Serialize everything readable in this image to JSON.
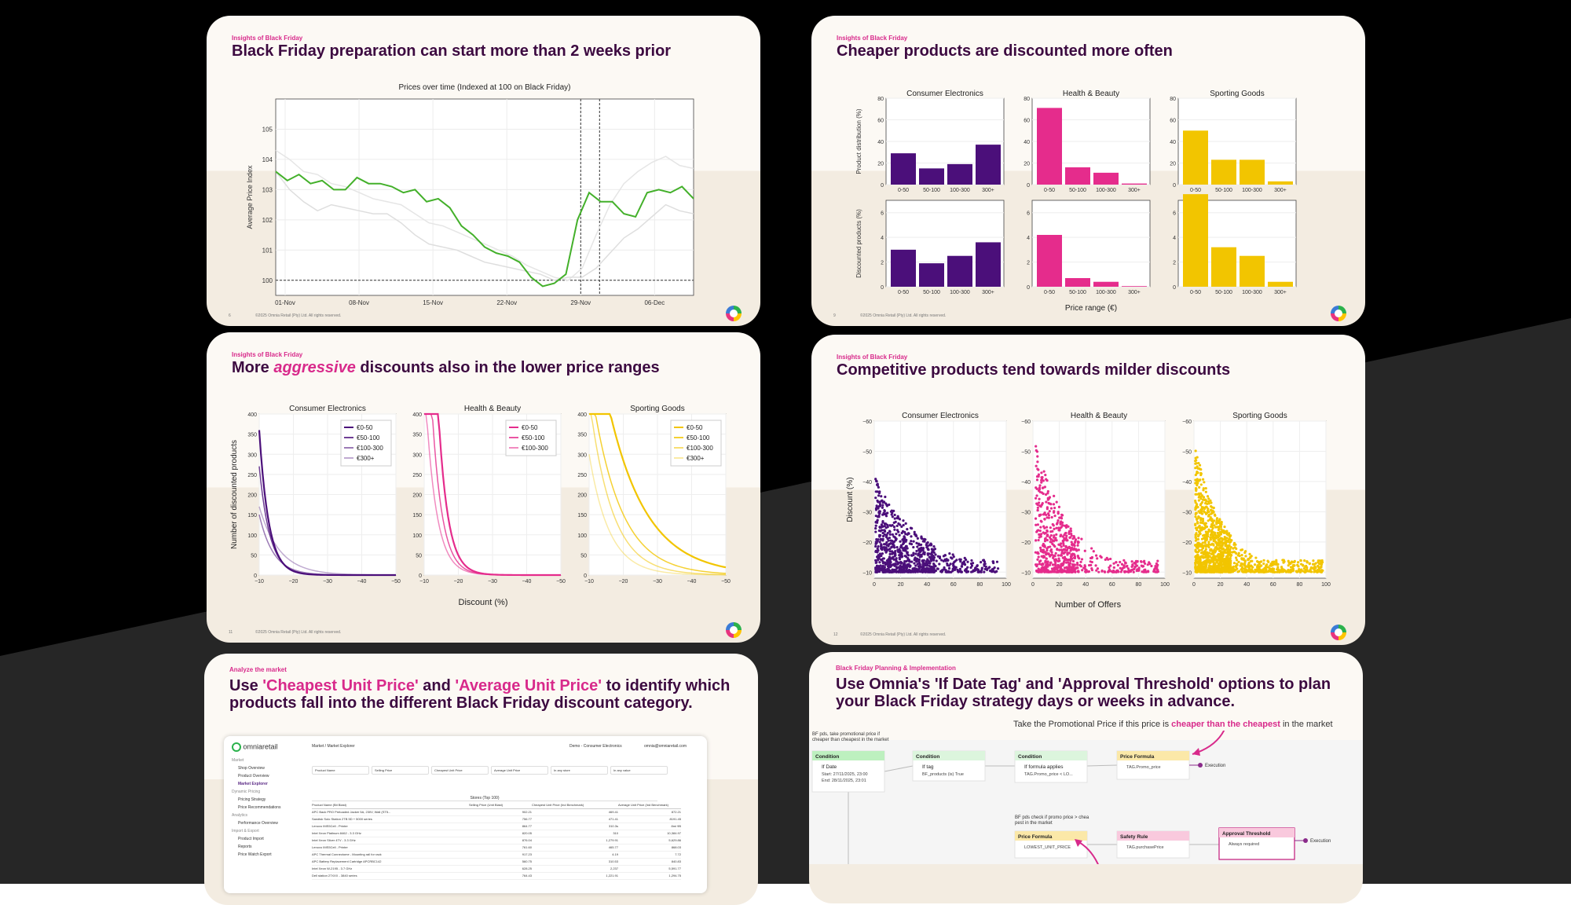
{
  "slides": {
    "s1": {
      "kicker": "Insights of Black Friday",
      "title": "Black Friday preparation can start more than 2 weeks prior",
      "page": "6",
      "copyright": "©2025 Omnia Retail (Pty) Ltd. All rights reserved."
    },
    "s2": {
      "kicker": "Insights of Black Friday",
      "title": "Cheaper products are discounted more often",
      "page": "9",
      "copyright": "©2025 Omnia Retail (Pty) Ltd. All rights reserved."
    },
    "s3": {
      "kicker": "Insights of Black Friday",
      "title_pre": "More ",
      "title_em": "aggressive",
      "title_post": " discounts also in the lower price ranges",
      "page": "11",
      "copyright": "©2025 Omnia Retail (Pty) Ltd. All rights reserved."
    },
    "s4": {
      "kicker": "Insights of Black Friday",
      "title": "Competitive products tend towards milder discounts",
      "page": "12",
      "copyright": "©2025 Omnia Retail (Pty) Ltd. All rights reserved."
    },
    "s5": {
      "kicker": "Analyze the market",
      "title_a": "Use ",
      "title_b": "'Cheapest Unit Price'",
      "title_c": " and ",
      "title_d": "'Average Unit Price'",
      "title_e": " to identify which products fall into the different Black Friday discount category.",
      "app": {
        "logo": "omniaretail",
        "breadcrumb": "Market / Market Explorer",
        "env": "Demo - Consumer Electronics",
        "user": "omnia@omniaretail.com",
        "nav": [
          "Market",
          "Shop Overview",
          "Product Overview",
          "Market Explorer",
          "Dynamic Pricing",
          "Pricing Strategy",
          "Price Recommendations",
          "Analytics",
          "Performance Overview",
          "Import & Export",
          "Product Import",
          "Reports",
          "Price Watch Export"
        ],
        "filters": [
          "Product Name",
          "Selling Price",
          "Cheapest Unit Price",
          "Average Unit Price",
          "In any store",
          "In any value"
        ],
        "table_header": "Stores (Top 100)",
        "columns": [
          "Product Name (Bit Blast)",
          "Selling Price (Unit Blast)",
          "Cheapest Unit Price (Ind Benchmark)",
          "Average Unit Price (Ind Benchmark)"
        ],
        "rows": [
          [
            "APC Back PRO Preloaded Jacker 5A, 230V, Wall (ST5...",
            "902.21",
            "469.41",
            "872.21"
          ],
          [
            "Sandisk Solo Station 2TB 5D + 5000 series",
            "756.77",
            "471.41",
            "8191.45"
          ],
          [
            "Lenovo IMS5Cell - Printer",
            "864.77",
            "310.3s",
            "8mi 9B"
          ],
          [
            "Intel Xeon Platinum 8462 - 3.3 GHz",
            "820.05",
            "310",
            "10,384.97"
          ],
          [
            "Intel Xeon Silver 4TV - 3.3 GHz",
            "876.04",
            "1,279.91",
            "5,629.86"
          ],
          [
            "Lenovo IMS5Cell - Printer",
            "761.60",
            "465.77",
            "868.03"
          ],
          [
            "APC Thermal Connectome - Mounting rail for rack",
            "917.23",
            "4.19",
            "7.72"
          ],
          [
            "APC Battery Replacement Cartridge APCRBC142",
            "560.75",
            "310.53",
            "840.83"
          ],
          [
            "Intel Xeon W-2195 - 3.7 GHz",
            "628.25",
            "2,237",
            "5,591.77"
          ],
          [
            "Dell station 27XXX - 3840 series",
            "764.43",
            "1,221.91",
            "1,294.75"
          ]
        ]
      }
    },
    "s6": {
      "kicker": "Black Friday Planning & Implementation",
      "title": "Use Omnia's 'If Date Tag' and 'Approval Threshold' options to plan your Black Friday strategy days or weeks in advance.",
      "annot1_pre": "Take the Promotional Price if this price is ",
      "annot1_bold": "cheaper than the cheapest",
      "annot1_post": " in the market",
      "note_left": "BF pds, take promotional price if cheaper than cheapest in the market",
      "note_mid": "BF pds check if promo price > cheapest in the market",
      "nodes": {
        "n1": {
          "head": "Condition",
          "title": "If Date",
          "line1": "Start: 27/11/2025, 23:00",
          "line2": "End: 28/11/2025, 23:01"
        },
        "n2": {
          "head": "Condition",
          "title": "If tag",
          "line1": "BF_products (is) True"
        },
        "n3": {
          "head": "Condition",
          "title": "If formula applies",
          "line1": "TAG.Promo_price < LO..."
        },
        "n4": {
          "head": "Price Formula",
          "line1": "TAG.Promo_price"
        },
        "n5": {
          "head": "Price Formula",
          "line1": "LOWEST_UNIT_PRICE"
        },
        "n6": {
          "head": "Safety Rule",
          "line1": "TAG.purchasePrice"
        },
        "n7": {
          "head": "Approval Threshold",
          "line1": "Always required"
        }
      },
      "exec1": "Execution",
      "exec2": "Execution"
    }
  },
  "chart_data": [
    {
      "id": "prices-over-time",
      "type": "line",
      "title": "Prices over time (Indexed at 100 on Black Friday)",
      "ylabel": "Average Price Index",
      "x_ticks": [
        "01-Nov",
        "08-Nov",
        "15-Nov",
        "22-Nov",
        "29-Nov",
        "06-Dec"
      ],
      "ylim": [
        99.5,
        106
      ],
      "y_ticks": [
        100,
        101,
        102,
        103,
        104,
        105
      ],
      "series": [
        {
          "values": [
            103.6,
            103.3,
            103.5,
            103.2,
            103.3,
            103.0,
            103.0,
            103.4,
            103.2,
            103.2,
            103.1,
            102.9,
            103.0,
            102.6,
            102.7,
            102.4,
            101.8,
            101.5,
            101.1,
            100.9,
            100.8,
            100.6,
            100.1,
            99.8,
            99.9,
            100.2,
            102.0,
            102.9,
            102.6,
            102.6,
            102.2,
            102.1,
            102.9,
            103.0,
            102.9,
            103.1,
            102.7
          ]
        },
        {
          "values": [
            103.6,
            103.0,
            102.6,
            102.3,
            102.5,
            102.4,
            102.3,
            102.2,
            102.2,
            101.9,
            101.5,
            101.2,
            101.1,
            101.0,
            100.8,
            100.6,
            100.5,
            100.4,
            100.3,
            100.2,
            100.0,
            100.1,
            100.1,
            100.4,
            100.9,
            101.4,
            101.7,
            102.1,
            102.5,
            102.3,
            102.2
          ]
        },
        {
          "values": [
            104.3,
            104.0,
            103.6,
            103.5,
            103.2,
            103.1,
            102.9,
            102.7,
            102.6,
            102.5,
            102.2,
            101.9,
            101.8,
            101.6,
            101.4,
            101.2,
            101.0,
            100.8,
            100.5,
            100.3,
            100.1,
            100.0,
            100.4,
            101.5,
            102.5,
            103.2,
            103.6,
            103.9,
            104.1,
            103.8,
            103.7
          ]
        }
      ],
      "ref_line_y": 100,
      "vlines_x": [
        "29-Nov"
      ]
    },
    {
      "id": "distribution-bars",
      "type": "bar",
      "xlabel": "Price range (€)",
      "ylabel_top": "Product distribution (%)",
      "ylabel_bottom": "Discounted products (%)",
      "categories": [
        "0-50",
        "50-100",
        "100-300",
        "300+"
      ],
      "panels": [
        "Consumer Electronics",
        "Health & Beauty",
        "Sporting Goods"
      ],
      "colors": [
        "#4b0f7a",
        "#e52c8c",
        "#f2c500"
      ],
      "top_ylim": [
        0,
        80
      ],
      "top_y_ticks": [
        0,
        20,
        40,
        60,
        80
      ],
      "bottom_ylim": [
        0,
        7
      ],
      "bottom_y_ticks": [
        0,
        2,
        4,
        6
      ],
      "product_distribution": [
        [
          29,
          15,
          19,
          37
        ],
        [
          71,
          16,
          11,
          1
        ],
        [
          50,
          23,
          23,
          3
        ]
      ],
      "discounted_products": [
        [
          3.0,
          1.9,
          2.5,
          3.6
        ],
        [
          4.2,
          0.7,
          0.4,
          0.05
        ],
        [
          7.5,
          3.2,
          2.5,
          0.4
        ]
      ]
    },
    {
      "id": "discount-curves",
      "type": "line",
      "xlabel": "Discount (%)",
      "ylabel": "Number of discounted products",
      "xlim": [
        -10,
        -50
      ],
      "ylim": [
        0,
        400
      ],
      "x_ticks": [
        -10,
        -20,
        -30,
        -40,
        -50
      ],
      "y_ticks": [
        0,
        50,
        100,
        150,
        200,
        250,
        300,
        350,
        400
      ],
      "panels": [
        {
          "name": "Consumer Electronics",
          "color": "#4b0f7a",
          "legend": [
            "€0-50",
            "€50-100",
            "€100-300",
            "€300+"
          ],
          "amplitude": [
            360,
            270,
            150,
            170
          ],
          "decay": [
            0.36,
            0.32,
            0.24,
            0.17
          ]
        },
        {
          "name": "Health & Beauty",
          "color": "#e52c8c",
          "legend": [
            "€0-50",
            "€50-100",
            "€100-300"
          ],
          "amplitude": [
            1800,
            900,
            500
          ],
          "decay": [
            0.36,
            0.34,
            0.32
          ]
        },
        {
          "name": "Sporting Goods",
          "color": "#f2c500",
          "legend": [
            "€0-50",
            "€50-100",
            "€100-300",
            "€300+"
          ],
          "amplitude": [
            700,
            500,
            440,
            300
          ],
          "decay": [
            0.09,
            0.12,
            0.15,
            0.17
          ]
        }
      ]
    },
    {
      "id": "offers-scatter",
      "type": "scatter",
      "xlabel": "Number of Offers",
      "ylabel": "Discount (%)",
      "xlim": [
        0,
        100
      ],
      "ylim": [
        -8,
        -60
      ],
      "x_ticks": [
        0,
        20,
        40,
        60,
        80,
        100
      ],
      "y_ticks": [
        -10,
        -20,
        -30,
        -40,
        -50,
        -60
      ],
      "panels": [
        {
          "name": "Consumer Electronics",
          "color": "#4b0f7a",
          "n": 900,
          "xmin": 1,
          "xmax": 95,
          "xspread": 30,
          "floor": -42
        },
        {
          "name": "Health & Beauty",
          "color": "#e52c8c",
          "n": 700,
          "xmin": 2,
          "xmax": 95,
          "xspread": 22,
          "floor": -56
        },
        {
          "name": "Sporting Goods",
          "color": "#f2c500",
          "n": 1300,
          "xmin": 1,
          "xmax": 98,
          "xspread": 18,
          "floor": -54
        }
      ]
    }
  ]
}
